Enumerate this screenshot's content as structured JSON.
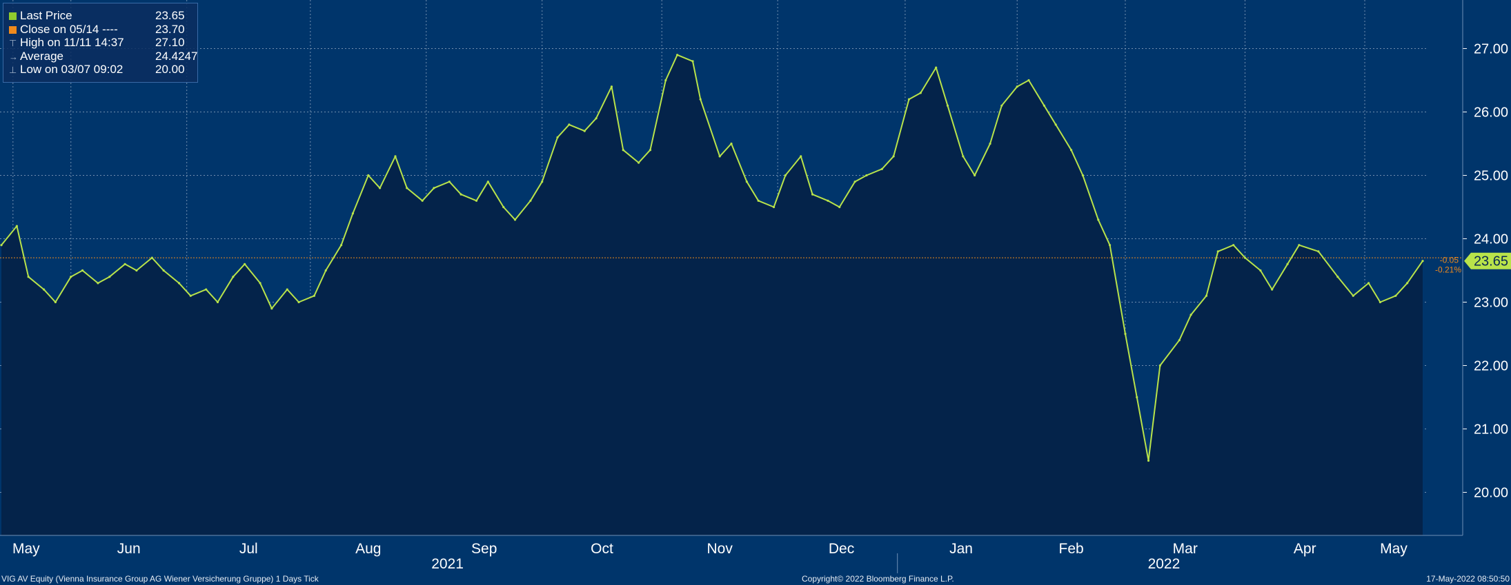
{
  "legend": {
    "last_price_label": "Last Price",
    "last_price_value": "23.65",
    "close_label": "Close on 05/14 ----",
    "close_value": "23.70",
    "high_label": "High on 11/11 14:37",
    "high_value": "27.10",
    "average_label": "Average",
    "average_value": "24.4247",
    "low_label": "Low on 03/07 09:02",
    "low_value": "20.00"
  },
  "footer": {
    "left": "VIG AV Equity (Vienna Insurance Group AG Wiener Versicherung Gruppe) 1 Days  Tick",
    "middle": "Copyright© 2022 Bloomberg Finance L.P.",
    "right": "17-May-2022 08:50:50"
  },
  "price_tag": {
    "value": "23.65",
    "change": "-0.05",
    "change_pct": "-0.21%"
  },
  "colors": {
    "background": "#00356b",
    "area_fill": "#04234a",
    "price_line": "#b9e34a",
    "close_line": "#f08a1c",
    "grid": "#9aaec6",
    "text": "#ffffff"
  },
  "chart_data": {
    "type": "area",
    "title": "",
    "xlabel": "",
    "ylabel": "",
    "ylim": [
      19.3,
      27.8
    ],
    "y_ticks": [
      "20.00",
      "21.00",
      "22.00",
      "23.00",
      "24.00",
      "25.00",
      "26.00",
      "27.00"
    ],
    "x_month_labels": [
      "May",
      "Jun",
      "Jul",
      "Aug",
      "Sep",
      "Oct",
      "Nov",
      "Dec",
      "Jan",
      "Feb",
      "Mar",
      "Apr",
      "May"
    ],
    "x_year_labels": [
      "2021",
      "2022"
    ],
    "close_reference": 23.7,
    "grid": true,
    "legend_position": "top-left",
    "series": [
      {
        "x": [
          "2021-05-14",
          "2021-05-18",
          "2021-05-21",
          "2021-05-25",
          "2021-05-28",
          "2021-06-01",
          "2021-06-04",
          "2021-06-08",
          "2021-06-11",
          "2021-06-15",
          "2021-06-18",
          "2021-06-22",
          "2021-06-25",
          "2021-06-29",
          "2021-07-02",
          "2021-07-06",
          "2021-07-09",
          "2021-07-13",
          "2021-07-16",
          "2021-07-20",
          "2021-07-23",
          "2021-07-27",
          "2021-07-30",
          "2021-08-03",
          "2021-08-06",
          "2021-08-10",
          "2021-08-13",
          "2021-08-17",
          "2021-08-20",
          "2021-08-24",
          "2021-08-27",
          "2021-08-31",
          "2021-09-03",
          "2021-09-07",
          "2021-09-10",
          "2021-09-14",
          "2021-09-17",
          "2021-09-21",
          "2021-09-24",
          "2021-09-28",
          "2021-10-01",
          "2021-10-05",
          "2021-10-08",
          "2021-10-12",
          "2021-10-15",
          "2021-10-19",
          "2021-10-22",
          "2021-10-26",
          "2021-10-29",
          "2021-11-02",
          "2021-11-05",
          "2021-11-09",
          "2021-11-11",
          "2021-11-16",
          "2021-11-19",
          "2021-11-23",
          "2021-11-26",
          "2021-11-30",
          "2021-12-03",
          "2021-12-07",
          "2021-12-10",
          "2021-12-14",
          "2021-12-17",
          "2021-12-21",
          "2021-12-24",
          "2021-12-28",
          "2021-12-31",
          "2022-01-04",
          "2022-01-07",
          "2022-01-11",
          "2022-01-14",
          "2022-01-18",
          "2022-01-21",
          "2022-01-25",
          "2022-01-28",
          "2022-02-01",
          "2022-02-04",
          "2022-02-08",
          "2022-02-11",
          "2022-02-15",
          "2022-02-18",
          "2022-02-22",
          "2022-02-25",
          "2022-03-01",
          "2022-03-04",
          "2022-03-07",
          "2022-03-10",
          "2022-03-15",
          "2022-03-18",
          "2022-03-22",
          "2022-03-25",
          "2022-03-29",
          "2022-04-01",
          "2022-04-05",
          "2022-04-08",
          "2022-04-12",
          "2022-04-15",
          "2022-04-20",
          "2022-04-25",
          "2022-04-29",
          "2022-05-03",
          "2022-05-06",
          "2022-05-10",
          "2022-05-13",
          "2022-05-17"
        ],
        "y": [
          23.9,
          24.2,
          23.4,
          23.2,
          23.0,
          23.4,
          23.5,
          23.3,
          23.4,
          23.6,
          23.5,
          23.7,
          23.5,
          23.3,
          23.1,
          23.2,
          23.0,
          23.4,
          23.6,
          23.3,
          22.9,
          23.2,
          23.0,
          23.1,
          23.5,
          23.9,
          24.4,
          25.0,
          24.8,
          25.3,
          24.8,
          24.6,
          24.8,
          24.9,
          24.7,
          24.6,
          24.9,
          24.5,
          24.3,
          24.6,
          24.9,
          25.6,
          25.8,
          25.7,
          25.9,
          26.4,
          25.4,
          25.2,
          25.4,
          26.5,
          26.9,
          26.8,
          26.2,
          25.3,
          25.5,
          24.9,
          24.6,
          24.5,
          25.0,
          25.3,
          24.7,
          24.6,
          24.5,
          24.9,
          25.0,
          25.1,
          25.3,
          26.2,
          26.3,
          26.7,
          26.1,
          25.3,
          25.0,
          25.5,
          26.1,
          26.4,
          26.5,
          26.1,
          25.8,
          25.4,
          25.0,
          24.3,
          23.9,
          22.5,
          21.5,
          20.5,
          22.0,
          22.4,
          22.8,
          23.1,
          23.8,
          23.9,
          23.7,
          23.5,
          23.2,
          23.6,
          23.9,
          23.8,
          23.4,
          23.1,
          23.3,
          23.0,
          23.1,
          23.3,
          23.65
        ]
      }
    ]
  }
}
